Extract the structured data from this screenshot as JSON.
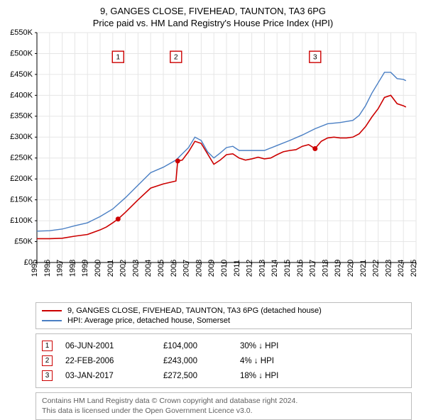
{
  "title_line1": "9, GANGES CLOSE, FIVEHEAD, TAUNTON, TA3 6PG",
  "title_line2": "Price paid vs. HM Land Registry's House Price Index (HPI)",
  "chart": {
    "type": "line",
    "background_color": "#ffffff",
    "grid_color": "#e6e6e6",
    "axis_color": "#000000",
    "ylim": [
      0,
      550000
    ],
    "ytick_step": 50000,
    "y_labels": [
      "£0",
      "£50K",
      "£100K",
      "£150K",
      "£200K",
      "£250K",
      "£300K",
      "£350K",
      "£400K",
      "£450K",
      "£500K",
      "£550K"
    ],
    "xlim": [
      1995,
      2025
    ],
    "x_years": [
      1995,
      1996,
      1997,
      1998,
      1999,
      2000,
      2001,
      2002,
      2003,
      2004,
      2005,
      2006,
      2007,
      2008,
      2009,
      2010,
      2011,
      2012,
      2013,
      2014,
      2015,
      2016,
      2017,
      2018,
      2019,
      2020,
      2021,
      2022,
      2023,
      2024,
      2025
    ],
    "series": [
      {
        "name": "price_paid",
        "label": "9, GANGES CLOSE, FIVEHEAD, TAUNTON, TA3 6PG (detached house)",
        "color": "#cc0000",
        "width": 1.6,
        "points": [
          [
            1995.0,
            57000
          ],
          [
            1996.0,
            57000
          ],
          [
            1997.0,
            58000
          ],
          [
            1998.0,
            63000
          ],
          [
            1999.0,
            67000
          ],
          [
            2000.0,
            78000
          ],
          [
            2000.5,
            85000
          ],
          [
            2001.0,
            95000
          ],
          [
            2001.42,
            104000
          ],
          [
            2002.0,
            120000
          ],
          [
            2003.0,
            150000
          ],
          [
            2004.0,
            178000
          ],
          [
            2005.0,
            188000
          ],
          [
            2006.0,
            195000
          ],
          [
            2006.14,
            243000
          ],
          [
            2006.5,
            245000
          ],
          [
            2007.0,
            265000
          ],
          [
            2007.5,
            290000
          ],
          [
            2008.0,
            285000
          ],
          [
            2008.5,
            260000
          ],
          [
            2009.0,
            235000
          ],
          [
            2009.5,
            245000
          ],
          [
            2010.0,
            258000
          ],
          [
            2010.5,
            260000
          ],
          [
            2011.0,
            250000
          ],
          [
            2011.5,
            245000
          ],
          [
            2012.0,
            248000
          ],
          [
            2012.5,
            252000
          ],
          [
            2013.0,
            248000
          ],
          [
            2013.5,
            250000
          ],
          [
            2014.0,
            258000
          ],
          [
            2014.5,
            265000
          ],
          [
            2015.0,
            268000
          ],
          [
            2015.5,
            270000
          ],
          [
            2016.0,
            278000
          ],
          [
            2016.5,
            282000
          ],
          [
            2017.0,
            272500
          ],
          [
            2017.5,
            290000
          ],
          [
            2018.0,
            298000
          ],
          [
            2018.5,
            300000
          ],
          [
            2019.0,
            298000
          ],
          [
            2019.5,
            298000
          ],
          [
            2020.0,
            300000
          ],
          [
            2020.5,
            308000
          ],
          [
            2021.0,
            325000
          ],
          [
            2021.5,
            348000
          ],
          [
            2022.0,
            368000
          ],
          [
            2022.5,
            395000
          ],
          [
            2023.0,
            400000
          ],
          [
            2023.5,
            380000
          ],
          [
            2024.0,
            375000
          ],
          [
            2024.2,
            372000
          ]
        ]
      },
      {
        "name": "hpi",
        "label": "HPI: Average price, detached house, Somerset",
        "color": "#4a7fc4",
        "width": 1.4,
        "points": [
          [
            1995.0,
            75000
          ],
          [
            1996.0,
            76000
          ],
          [
            1997.0,
            80000
          ],
          [
            1998.0,
            88000
          ],
          [
            1999.0,
            95000
          ],
          [
            2000.0,
            110000
          ],
          [
            2001.0,
            128000
          ],
          [
            2002.0,
            155000
          ],
          [
            2003.0,
            185000
          ],
          [
            2004.0,
            215000
          ],
          [
            2005.0,
            228000
          ],
          [
            2006.0,
            245000
          ],
          [
            2007.0,
            275000
          ],
          [
            2007.5,
            300000
          ],
          [
            2008.0,
            292000
          ],
          [
            2008.5,
            265000
          ],
          [
            2009.0,
            250000
          ],
          [
            2009.5,
            262000
          ],
          [
            2010.0,
            275000
          ],
          [
            2010.5,
            278000
          ],
          [
            2011.0,
            268000
          ],
          [
            2012.0,
            268000
          ],
          [
            2013.0,
            268000
          ],
          [
            2014.0,
            280000
          ],
          [
            2015.0,
            292000
          ],
          [
            2016.0,
            305000
          ],
          [
            2017.0,
            320000
          ],
          [
            2018.0,
            332000
          ],
          [
            2019.0,
            335000
          ],
          [
            2020.0,
            340000
          ],
          [
            2020.5,
            352000
          ],
          [
            2021.0,
            375000
          ],
          [
            2021.5,
            405000
          ],
          [
            2022.0,
            430000
          ],
          [
            2022.5,
            455000
          ],
          [
            2023.0,
            455000
          ],
          [
            2023.5,
            440000
          ],
          [
            2024.0,
            438000
          ],
          [
            2024.2,
            435000
          ]
        ]
      }
    ],
    "sale_markers": [
      {
        "n": "1",
        "x": 2001.42,
        "y": 104000,
        "label_x": 2001.42,
        "label_y": 492000
      },
      {
        "n": "2",
        "x": 2006.14,
        "y": 243000,
        "label_x": 2006.0,
        "label_y": 492000
      },
      {
        "n": "3",
        "x": 2017.01,
        "y": 272500,
        "label_x": 2017.01,
        "label_y": 492000
      }
    ],
    "marker_point_color": "#cc0000",
    "marker_point_radius": 3.5
  },
  "legend": {
    "items": [
      {
        "color": "#cc0000",
        "label": "9, GANGES CLOSE, FIVEHEAD, TAUNTON, TA3 6PG (detached house)"
      },
      {
        "color": "#4a7fc4",
        "label": "HPI: Average price, detached house, Somerset"
      }
    ]
  },
  "sales_table": {
    "rows": [
      {
        "n": "1",
        "date": "06-JUN-2001",
        "price": "£104,000",
        "diff": "30% ↓ HPI"
      },
      {
        "n": "2",
        "date": "22-FEB-2006",
        "price": "£243,000",
        "diff": "4% ↓ HPI"
      },
      {
        "n": "3",
        "date": "03-JAN-2017",
        "price": "£272,500",
        "diff": "18% ↓ HPI"
      }
    ]
  },
  "footer_line1": "Contains HM Land Registry data © Crown copyright and database right 2024.",
  "footer_line2": "This data is licensed under the Open Government Licence v3.0."
}
